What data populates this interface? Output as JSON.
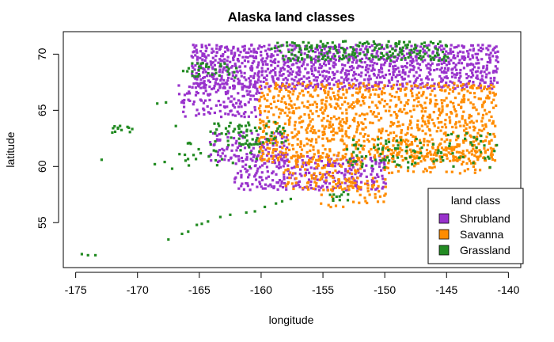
{
  "chart_data": {
    "type": "scatter",
    "title": "Alaska land classes",
    "xlabel": "longitude",
    "ylabel": "latitude",
    "xlim": [
      -176,
      -139
    ],
    "ylim": [
      51,
      72
    ],
    "x_ticks": [
      -175,
      -170,
      -165,
      -160,
      -155,
      -150,
      -145,
      -140
    ],
    "y_ticks": [
      55,
      60,
      65,
      70
    ],
    "grid": false,
    "legend": {
      "title": "land class",
      "position": "bottom-right"
    },
    "series": [
      {
        "name": "Shrubland",
        "color": "#9932CC",
        "regions": [
          {
            "lon": [
              -165.5,
              -141
            ],
            "lat": [
              67.0,
              70.8
            ],
            "density": 0.85
          },
          {
            "lon": [
              -166.5,
              -160
            ],
            "lat": [
              64.5,
              67.5
            ],
            "density": 0.5
          },
          {
            "lon": [
              -162,
              -150
            ],
            "lat": [
              58.0,
              61.0
            ],
            "density": 0.6
          },
          {
            "lon": [
              -164,
              -158
            ],
            "lat": [
              60.5,
              63.0
            ],
            "density": 0.5
          }
        ]
      },
      {
        "name": "Savanna",
        "color": "#FF8C00",
        "regions": [
          {
            "lon": [
              -160,
              -141
            ],
            "lat": [
              60.5,
              67.5
            ],
            "density": 0.55
          },
          {
            "lon": [
              -158,
              -152
            ],
            "lat": [
              58.0,
              61.0
            ],
            "density": 0.4
          },
          {
            "lon": [
              -155,
              -150
            ],
            "lat": [
              56.5,
              59.0
            ],
            "density": 0.35
          },
          {
            "lon": [
              -150,
              -141
            ],
            "lat": [
              59.5,
              62.5
            ],
            "density": 0.3
          }
        ]
      },
      {
        "name": "Grassland",
        "color": "#228B22",
        "regions": [
          {
            "lon": [
              -159,
              -145
            ],
            "lat": [
              69.5,
              71.2
            ],
            "density": 0.55
          },
          {
            "lon": [
              -166,
              -162
            ],
            "lat": [
              68.0,
              69.2
            ],
            "density": 0.35
          },
          {
            "lon": [
              -164,
              -158
            ],
            "lat": [
              62.0,
              64.0
            ],
            "density": 0.35
          },
          {
            "lon": [
              -166,
              -160
            ],
            "lat": [
              60.0,
              62.0
            ],
            "density": 0.2
          },
          {
            "lon": [
              -153,
              -147
            ],
            "lat": [
              60.0,
              62.5
            ],
            "density": 0.3
          },
          {
            "lon": [
              -146,
              -141
            ],
            "lat": [
              60.0,
              63.0
            ],
            "density": 0.2
          },
          {
            "lon": [
              -172,
              -170.5
            ],
            "lat": [
              63.1,
              63.7
            ],
            "density": 0.9
          },
          {
            "lon": [
              -154.5,
              -153
            ],
            "lat": [
              57.0,
              57.8
            ],
            "density": 0.5
          }
        ],
        "points": [
          [
            -174.5,
            52.2
          ],
          [
            -174.0,
            52.1
          ],
          [
            -173.4,
            52.1
          ],
          [
            -172.9,
            60.6
          ],
          [
            -167.5,
            53.5
          ],
          [
            -166.4,
            54.0
          ],
          [
            -165.9,
            54.2
          ],
          [
            -165.2,
            54.8
          ],
          [
            -164.8,
            54.9
          ],
          [
            -164.3,
            55.1
          ],
          [
            -163.3,
            55.5
          ],
          [
            -162.5,
            55.7
          ],
          [
            -161.2,
            55.9
          ],
          [
            -160.5,
            56.0
          ],
          [
            -159.7,
            56.4
          ],
          [
            -158.8,
            56.7
          ],
          [
            -158.3,
            56.9
          ],
          [
            -157.6,
            57.1
          ],
          [
            -168.4,
            65.6
          ],
          [
            -167.7,
            65.7
          ],
          [
            -166.9,
            63.6
          ],
          [
            -167.8,
            60.4
          ],
          [
            -168.6,
            60.2
          ],
          [
            -167.2,
            59.8
          ],
          [
            -166.6,
            61.1
          ],
          [
            -165.8,
            62.1
          ],
          [
            -166.3,
            68.5
          ],
          [
            -165.0,
            68.9
          ]
        ]
      }
    ]
  }
}
